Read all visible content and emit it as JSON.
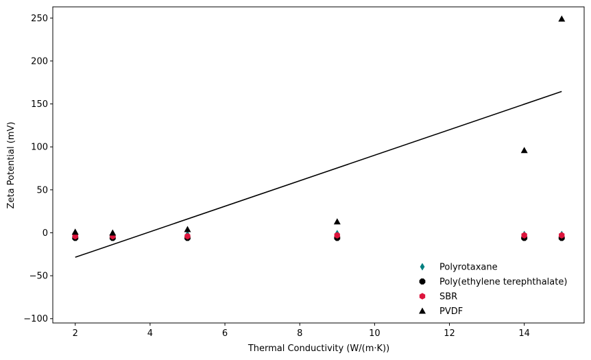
{
  "chart_data": {
    "type": "scatter",
    "title": "",
    "xlabel": "Thermal Conductivity (W/(m·K))",
    "ylabel": "Zeta Potential (mV)",
    "xlim": [
      1.4,
      15.6
    ],
    "ylim": [
      -105,
      263
    ],
    "xticks": [
      2,
      4,
      6,
      8,
      10,
      12,
      14
    ],
    "yticks": [
      -100,
      -50,
      0,
      50,
      100,
      150,
      200,
      250
    ],
    "xtick_labels": [
      "2",
      "4",
      "6",
      "8",
      "10",
      "12",
      "14"
    ],
    "ytick_labels": [
      "−100",
      "−50",
      "0",
      "50",
      "100",
      "150",
      "200",
      "250"
    ],
    "grid": false,
    "legend_position": "lower-right",
    "series": [
      {
        "name": "Polyrotaxane",
        "marker": "thin-diamond",
        "color": "#008080",
        "x": [
          2,
          3,
          5,
          9,
          14,
          15
        ],
        "y": [
          -3,
          -3,
          -2,
          -1,
          -2,
          -2
        ]
      },
      {
        "name": "Poly(ethylene terephthalate)",
        "marker": "octagon",
        "color": "#000000",
        "x": [
          2,
          3,
          5,
          9,
          14,
          15
        ],
        "y": [
          -6,
          -6,
          -6,
          -6,
          -6,
          -6
        ]
      },
      {
        "name": "SBR",
        "marker": "hexagon",
        "color": "#dc143c",
        "x": [
          2,
          3,
          5,
          9,
          14,
          15
        ],
        "y": [
          -4,
          -4,
          -4,
          -3,
          -3,
          -3
        ]
      },
      {
        "name": "PVDF",
        "marker": "triangle",
        "color": "#000000",
        "x": [
          2,
          3,
          5,
          9,
          14,
          15
        ],
        "y": [
          1,
          0,
          4,
          13,
          96,
          249
        ]
      }
    ],
    "trend_line": {
      "color": "#000000",
      "x": [
        2,
        15
      ],
      "y": [
        -28.5,
        164.5
      ]
    }
  }
}
